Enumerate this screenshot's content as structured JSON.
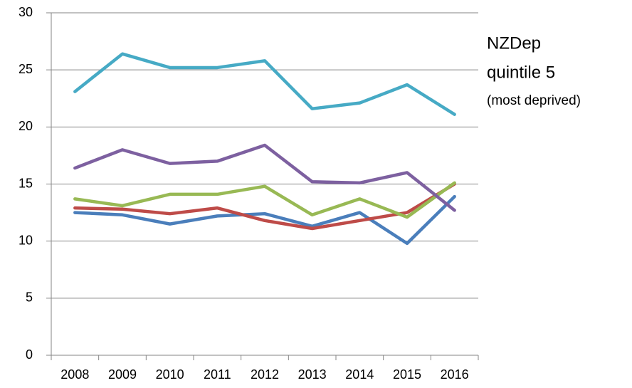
{
  "chart_data": {
    "type": "line",
    "categories": [
      "2008",
      "2009",
      "2010",
      "2011",
      "2012",
      "2013",
      "2014",
      "2015",
      "2016"
    ],
    "series": [
      {
        "color": "#4a7ebb",
        "values": [
          12.5,
          12.3,
          11.5,
          12.2,
          12.4,
          11.3,
          12.5,
          9.8,
          13.9
        ]
      },
      {
        "color": "#be4b48",
        "values": [
          12.9,
          12.8,
          12.4,
          12.9,
          11.8,
          11.1,
          11.8,
          12.5,
          15.0
        ]
      },
      {
        "color": "#98b954",
        "values": [
          13.7,
          13.1,
          14.1,
          14.1,
          14.8,
          12.3,
          13.7,
          12.1,
          15.1
        ]
      },
      {
        "color": "#7d60a0",
        "values": [
          16.4,
          18.0,
          16.8,
          17.0,
          18.4,
          15.2,
          15.1,
          16.0,
          12.7
        ]
      },
      {
        "color": "#46aac5",
        "values": [
          23.1,
          26.4,
          25.2,
          25.2,
          25.8,
          21.6,
          22.1,
          23.7,
          21.1
        ]
      }
    ],
    "ylim": [
      0,
      30
    ],
    "yticks": [
      0,
      5,
      10,
      15,
      20,
      25,
      30
    ],
    "grid": true,
    "annotation": [
      "NZDep",
      "quintile 5",
      "(most deprived)"
    ]
  }
}
